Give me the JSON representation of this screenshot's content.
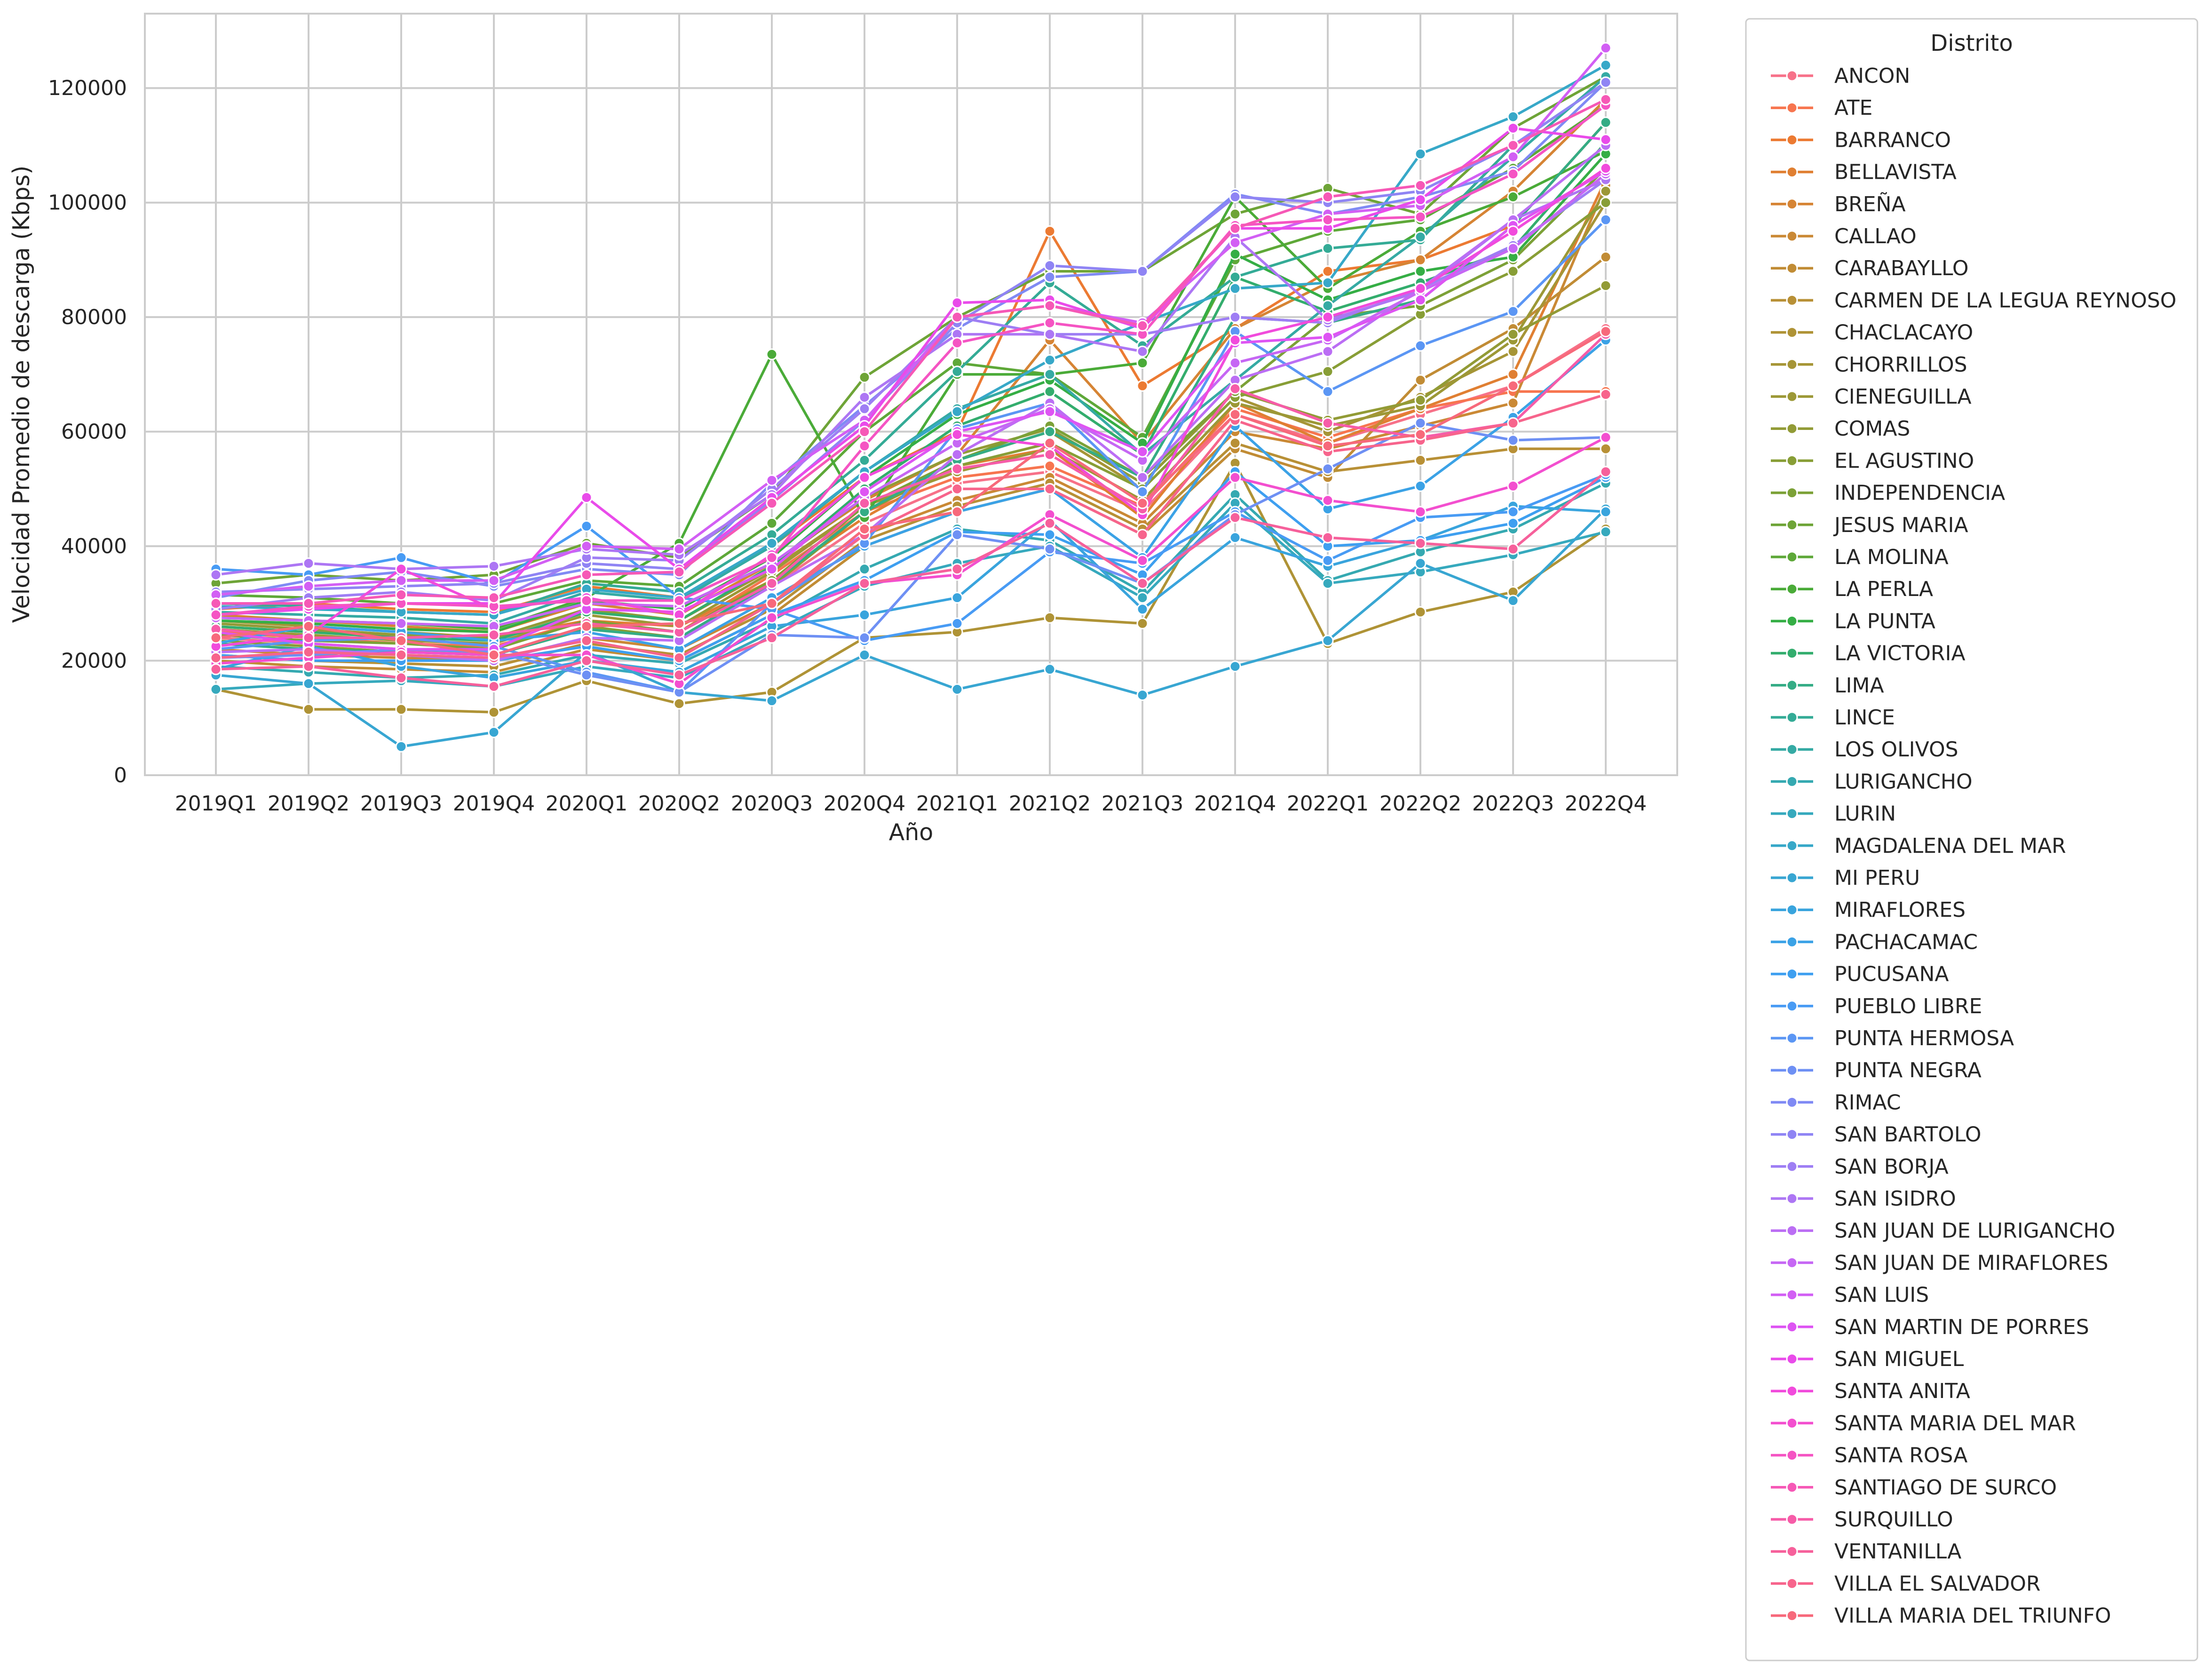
{
  "chart_data": {
    "type": "line",
    "xlabel": "Año",
    "ylabel": "Velocidad Promedio de descarga (Kbps)",
    "ylim": [
      0,
      133000
    ],
    "yticks": [
      0,
      20000,
      40000,
      60000,
      80000,
      100000,
      120000
    ],
    "grid": true,
    "legend_title": "Distrito",
    "legend_position": "outside-right",
    "categories": [
      "2019Q1",
      "2019Q2",
      "2019Q3",
      "2019Q4",
      "2020Q1",
      "2020Q2",
      "2020Q3",
      "2020Q4",
      "2021Q1",
      "2021Q2",
      "2021Q3",
      "2021Q4",
      "2022Q1",
      "2022Q2",
      "2022Q3",
      "2022Q4"
    ],
    "series": [
      {
        "name": "ANCON",
        "color": "#f77189",
        "values": [
          24000,
          23000,
          22000,
          21000,
          26000,
          24000,
          33000,
          44000,
          51000,
          53000,
          46000,
          63000,
          58000,
          63000,
          68000,
          78000
        ]
      },
      {
        "name": "ATE",
        "color": "#f7754f",
        "values": [
          25000,
          24000,
          23000,
          22500,
          27000,
          25000,
          35000,
          46000,
          52000,
          54000,
          47000,
          64000,
          59000,
          64000,
          67000,
          67000
        ]
      },
      {
        "name": "BARRANCO",
        "color": "#ec7a32",
        "values": [
          29000,
          30000,
          29000,
          28500,
          33000,
          31000,
          40000,
          52000,
          60000,
          95000,
          68000,
          78000,
          88000,
          90000,
          96000,
          114000
        ]
      },
      {
        "name": "BELLAVISTA",
        "color": "#e07f32",
        "values": [
          26000,
          25000,
          24500,
          24000,
          27000,
          26000,
          34000,
          45000,
          54000,
          57000,
          45000,
          65000,
          58000,
          64000,
          70000,
          104000
        ]
      },
      {
        "name": "BREÑA",
        "color": "#d68434",
        "values": [
          28000,
          27000,
          26000,
          25000,
          30000,
          28000,
          37000,
          48000,
          56000,
          76000,
          58000,
          78000,
          86000,
          90000,
          102000,
          118000
        ]
      },
      {
        "name": "CALLAO",
        "color": "#ca8935",
        "values": [
          22000,
          21000,
          20500,
          20000,
          24000,
          22000,
          30000,
          42000,
          48000,
          52000,
          44000,
          60000,
          57000,
          61000,
          65000,
          103000
        ]
      },
      {
        "name": "CARABAYLLO",
        "color": "#c18c35",
        "values": [
          20000,
          19000,
          18500,
          18000,
          22000,
          20000,
          28000,
          40000,
          46000,
          50000,
          42000,
          57000,
          52000,
          69000,
          78000,
          90500
        ]
      },
      {
        "name": "CARMEN DE LA LEGUA REYNOSO",
        "color": "#b89036",
        "values": [
          21000,
          20000,
          19500,
          19000,
          23000,
          21000,
          29000,
          41000,
          47000,
          51000,
          43000,
          58000,
          53000,
          55000,
          57000,
          57000
        ]
      },
      {
        "name": "CHACLACAYO",
        "color": "#af9336",
        "values": [
          15000,
          11500,
          11500,
          11000,
          16500,
          12500,
          14500,
          24000,
          25000,
          27500,
          26500,
          54500,
          23000,
          28500,
          32000,
          43000
        ]
      },
      {
        "name": "CHORRILLOS",
        "color": "#a69536",
        "values": [
          27000,
          26000,
          25000,
          24000,
          29000,
          27000,
          36000,
          47000,
          55000,
          60000,
          50000,
          66000,
          60000,
          66000,
          74000,
          100000
        ]
      },
      {
        "name": "CIENEGUILLA",
        "color": "#9c9836",
        "values": [
          25500,
          24500,
          23500,
          23000,
          28000,
          26000,
          35500,
          47000,
          53000,
          57000,
          48000,
          65000,
          61000,
          64500,
          76000,
          102000
        ]
      },
      {
        "name": "COMAS",
        "color": "#929b36",
        "values": [
          26500,
          25500,
          24500,
          24000,
          29000,
          27000,
          36500,
          48500,
          56000,
          60500,
          51000,
          67000,
          62000,
          65500,
          77000,
          85500
        ]
      },
      {
        "name": "EL AGUSTINO",
        "color": "#889e36",
        "values": [
          23500,
          22500,
          21500,
          21000,
          26000,
          24000,
          33000,
          46000,
          54000,
          58000,
          50000,
          66000,
          70500,
          80500,
          88000,
          100000
        ]
      },
      {
        "name": "INDEPENDENCIA",
        "color": "#7ca137",
        "values": [
          24500,
          23500,
          23000,
          22000,
          27000,
          25000,
          34000,
          47000,
          55000,
          61000,
          52000,
          67000,
          80000,
          82000,
          90000,
          106000
        ]
      },
      {
        "name": "JESUS MARIA",
        "color": "#6ea437",
        "values": [
          33500,
          35000,
          34000,
          35000,
          40500,
          38000,
          49000,
          69500,
          80000,
          88000,
          88000,
          98000,
          102500,
          98000,
          113000,
          122000
        ]
      },
      {
        "name": "LA MOLINA",
        "color": "#5ea838",
        "values": [
          31500,
          31000,
          30000,
          30000,
          34000,
          33000,
          44000,
          60000,
          72000,
          70000,
          59000,
          90000,
          95000,
          97000,
          106000,
          117000
        ]
      },
      {
        "name": "LA PERLA",
        "color": "#4aab38",
        "values": [
          27500,
          27000,
          26500,
          25500,
          31000,
          40500,
          73500,
          45000,
          70000,
          70000,
          72000,
          101000,
          85000,
          95000,
          101000,
          109000
        ]
      },
      {
        "name": "LA PUNTA",
        "color": "#35ae45",
        "values": [
          27000,
          26500,
          25500,
          25000,
          30500,
          29000,
          38000,
          52000,
          63000,
          69000,
          58000,
          91000,
          83000,
          88000,
          90500,
          108500
        ]
      },
      {
        "name": "LA VICTORIA",
        "color": "#33ad6d",
        "values": [
          26000,
          25000,
          24000,
          23500,
          28500,
          27000,
          36500,
          50000,
          61000,
          67000,
          56000,
          87000,
          81000,
          86000,
          92000,
          110500
        ]
      },
      {
        "name": "LIMA",
        "color": "#34ac85",
        "values": [
          23000,
          22000,
          21500,
          21000,
          25500,
          24000,
          33500,
          46000,
          55000,
          60000,
          52000,
          80000,
          79000,
          83000,
          96000,
          114000
        ]
      },
      {
        "name": "LINCE",
        "color": "#34ab96",
        "values": [
          30000,
          29500,
          28500,
          28000,
          33500,
          32000,
          42000,
          55000,
          70500,
          86000,
          75000,
          87000,
          92000,
          93500,
          110000,
          121000
        ]
      },
      {
        "name": "LOS OLIVOS",
        "color": "#35aaa4",
        "values": [
          28500,
          28000,
          27500,
          26500,
          32000,
          30500,
          40000,
          53000,
          64000,
          70000,
          56000,
          69000,
          82000,
          94000,
          108000,
          122000
        ]
      },
      {
        "name": "LURIGANCHO",
        "color": "#35a9b1",
        "values": [
          19000,
          18000,
          17000,
          17500,
          21000,
          19500,
          27000,
          36000,
          43000,
          41000,
          32000,
          49000,
          34000,
          39000,
          43000,
          51000
        ]
      },
      {
        "name": "LURIN",
        "color": "#36a9bd",
        "values": [
          15000,
          16000,
          16500,
          15500,
          19000,
          17000,
          25000,
          33000,
          37000,
          40000,
          31000,
          47500,
          33500,
          35500,
          38500,
          42500
        ]
      },
      {
        "name": "MAGDALENA DEL MAR",
        "color": "#37a8c8",
        "values": [
          29500,
          29000,
          28500,
          28000,
          32500,
          31000,
          40500,
          53000,
          63500,
          72500,
          79000,
          85000,
          86000,
          108500,
          115000,
          124000
        ]
      },
      {
        "name": "MI PERU",
        "color": "#38a6d2",
        "values": [
          17500,
          16000,
          5000,
          7500,
          21500,
          14500,
          13000,
          21000,
          15000,
          18500,
          14000,
          19000,
          23500,
          37000,
          30500,
          46500
        ]
      },
      {
        "name": "MIRAFLORES",
        "color": "#39a4dd",
        "values": [
          18500,
          22500,
          19000,
          17000,
          20000,
          18000,
          26000,
          28000,
          31000,
          44500,
          29000,
          41500,
          36500,
          41000,
          47000,
          46000
        ]
      },
      {
        "name": "PACHACAMAC",
        "color": "#3ba2e6",
        "values": [
          23000,
          26000,
          25000,
          23500,
          25000,
          22000,
          31000,
          40000,
          46000,
          50000,
          38000,
          61000,
          46500,
          50500,
          62500,
          76000
        ]
      },
      {
        "name": "PUCUSANA",
        "color": "#3e9ff0",
        "values": [
          21000,
          20000,
          20000,
          20000,
          22500,
          20000,
          28000,
          34000,
          42500,
          42000,
          35000,
          53000,
          40000,
          41000,
          44000,
          52000
        ]
      },
      {
        "name": "PUEBLO LIBRE",
        "color": "#489bf4",
        "values": [
          36000,
          35000,
          38000,
          33500,
          43500,
          31000,
          29000,
          23500,
          26500,
          39000,
          37000,
          46000,
          37500,
          45000,
          46000,
          52500
        ]
      },
      {
        "name": "PUNTA HERMOSA",
        "color": "#5b96f4",
        "values": [
          22000,
          23500,
          24000,
          22500,
          18000,
          14500,
          30000,
          40500,
          60500,
          65000,
          49500,
          77500,
          67000,
          75000,
          81000,
          97000
        ]
      },
      {
        "name": "PUNTA NEGRA",
        "color": "#6e90f4",
        "values": [
          20500,
          21000,
          22000,
          21500,
          17500,
          14500,
          24500,
          24000,
          42000,
          39500,
          33500,
          45500,
          53500,
          61500,
          58500,
          59000
        ]
      },
      {
        "name": "RIMAC",
        "color": "#808af4",
        "values": [
          31000,
          34000,
          35500,
          33000,
          36000,
          35000,
          51000,
          64500,
          78000,
          87000,
          88000,
          101500,
          98000,
          101000,
          105500,
          121000
        ]
      },
      {
        "name": "SAN BARTOLO",
        "color": "#8f84f4",
        "values": [
          32000,
          32500,
          33000,
          33500,
          37000,
          36000,
          48000,
          62000,
          79000,
          89000,
          88000,
          101000,
          100000,
          102000,
          110000,
          121000
        ]
      },
      {
        "name": "SAN BORJA",
        "color": "#9e7ef4",
        "values": [
          29000,
          31000,
          32000,
          30500,
          38000,
          37500,
          50000,
          64000,
          80000,
          77000,
          77000,
          80000,
          79000,
          85000,
          92500,
          104000
        ]
      },
      {
        "name": "SAN ISIDRO",
        "color": "#ad76f4",
        "values": [
          35000,
          37000,
          36000,
          36500,
          39500,
          38500,
          49000,
          66000,
          77000,
          77000,
          74000,
          94000,
          79500,
          84500,
          97000,
          104000
        ]
      },
      {
        "name": "SAN JUAN DE LURIGANCHO",
        "color": "#bb6ef4",
        "values": [
          21500,
          22000,
          21000,
          20000,
          24000,
          23500,
          33000,
          42000,
          56000,
          65000,
          52000,
          69000,
          74000,
          85000,
          97000,
          110000
        ]
      },
      {
        "name": "SAN JUAN DE MIRAFLORES",
        "color": "#c667f4",
        "values": [
          27500,
          27000,
          26500,
          26000,
          30000,
          29500,
          37000,
          48500,
          58000,
          64000,
          55000,
          72000,
          76000,
          84500,
          92000,
          105000
        ]
      },
      {
        "name": "SAN LUIS",
        "color": "#d25ff4",
        "values": [
          31500,
          33000,
          34000,
          34000,
          40000,
          39500,
          51500,
          62000,
          80000,
          82000,
          79000,
          93000,
          98000,
          99500,
          108000,
          127000
        ]
      },
      {
        "name": "SAN MARTIN DE PORRES",
        "color": "#de54f3",
        "values": [
          25000,
          23000,
          22000,
          22000,
          29000,
          28500,
          36000,
          49500,
          60000,
          63500,
          56500,
          75500,
          76500,
          83000,
          96000,
          105500
        ]
      },
      {
        "name": "SAN MIGUEL",
        "color": "#e94bea",
        "values": [
          28000,
          29000,
          30000,
          30000,
          48500,
          36000,
          48500,
          61000,
          82500,
          83000,
          78000,
          95500,
          95500,
          100500,
          113000,
          111000
        ]
      },
      {
        "name": "SANTA ANITA",
        "color": "#f14bdc",
        "values": [
          22500,
          24500,
          36000,
          29000,
          31000,
          28000,
          38500,
          52000,
          59500,
          57500,
          45500,
          76000,
          80000,
          85000,
          95000,
          106000
        ]
      },
      {
        "name": "SANTA MARIA DEL MAR",
        "color": "#f34fcf",
        "values": [
          19500,
          20500,
          21500,
          21000,
          21000,
          16000,
          27500,
          33500,
          35000,
          45500,
          37500,
          52000,
          48000,
          46000,
          50500,
          59000
        ]
      },
      {
        "name": "SANTA ROSA",
        "color": "#f554c3",
        "values": [
          28000,
          29500,
          30000,
          29500,
          30500,
          30500,
          38000,
          57500,
          75500,
          79000,
          77000,
          96000,
          97000,
          97500,
          105000,
          117000
        ]
      },
      {
        "name": "SANTIAGO DE SURCO",
        "color": "#f658b6",
        "values": [
          30000,
          30000,
          31500,
          31000,
          35000,
          35500,
          47500,
          60000,
          80000,
          82000,
          78500,
          95500,
          101000,
          103000,
          110000,
          118000
        ]
      },
      {
        "name": "SURQUILLO",
        "color": "#f65ca8",
        "values": [
          25500,
          24000,
          24000,
          24500,
          26500,
          25000,
          33500,
          47500,
          53500,
          56000,
          46500,
          67500,
          61500,
          59000,
          61500,
          77000
        ]
      },
      {
        "name": "VENTANILLA",
        "color": "#f6609b",
        "values": [
          18500,
          19000,
          17000,
          15500,
          20000,
          17500,
          24000,
          33500,
          36000,
          44000,
          33500,
          45000,
          41500,
          40500,
          39500,
          53000
        ]
      },
      {
        "name": "VILLA EL SALVADOR",
        "color": "#f7648c",
        "values": [
          20500,
          21500,
          21000,
          20500,
          23500,
          20500,
          30000,
          42000,
          50000,
          50000,
          42000,
          62000,
          56500,
          58500,
          61500,
          66500
        ]
      },
      {
        "name": "VILLA MARIA DEL TRIUNFO",
        "color": "#f7697b",
        "values": [
          24000,
          26000,
          23500,
          21000,
          26000,
          26500,
          30000,
          43000,
          46000,
          58000,
          47500,
          63000,
          57500,
          59500,
          68000,
          77500
        ]
      }
    ]
  }
}
